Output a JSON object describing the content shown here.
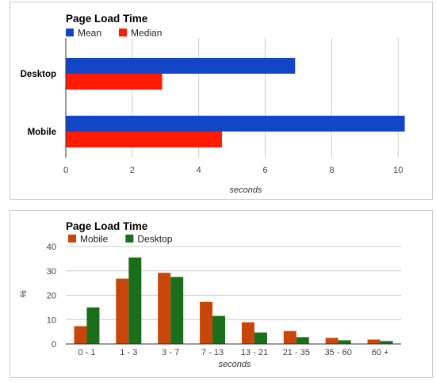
{
  "chart_data": [
    {
      "type": "bar",
      "orientation": "horizontal",
      "title": "Page Load Time",
      "categories": [
        "Desktop",
        "Mobile"
      ],
      "series": [
        {
          "name": "Mean",
          "color": "#1346c7",
          "values": [
            6.9,
            10.2
          ]
        },
        {
          "name": "Median",
          "color": "#ff1a00",
          "values": [
            2.9,
            4.7
          ]
        }
      ],
      "xlabel": "seconds",
      "ylabel": "",
      "xlim": [
        0,
        10.4
      ],
      "xticks": [
        "0",
        "2",
        "4",
        "6",
        "8",
        "10"
      ],
      "grid": true,
      "legend": "top-left"
    },
    {
      "type": "bar",
      "orientation": "vertical",
      "title": "Page Load Time",
      "categories": [
        "0 - 1",
        "1 - 3",
        "3 - 7",
        "7 - 13",
        "13 - 21",
        "21 - 35",
        "35 - 60",
        "60 +"
      ],
      "series": [
        {
          "name": "Mobile",
          "color": "#c8460a",
          "values": [
            7.3,
            26.8,
            29.2,
            17.3,
            8.9,
            5.3,
            2.5,
            1.8
          ]
        },
        {
          "name": "Desktop",
          "color": "#1b6e1b",
          "values": [
            15,
            35.5,
            27.5,
            11.5,
            4.7,
            2.8,
            1.5,
            1.2
          ]
        }
      ],
      "xlabel": "seconds",
      "ylabel": "%",
      "ylim": [
        0,
        40
      ],
      "yticks": [
        "0",
        "10",
        "20",
        "30",
        "40"
      ],
      "grid": true,
      "legend": "top-left"
    }
  ]
}
